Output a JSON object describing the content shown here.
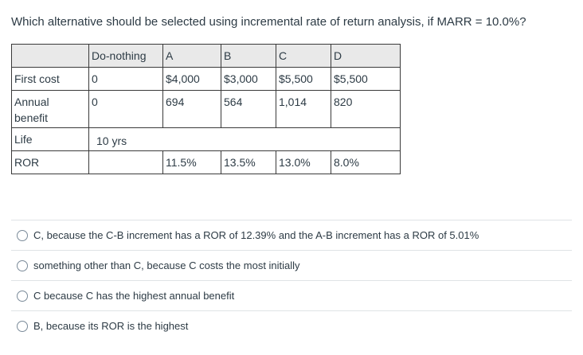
{
  "question": "Which alternative should be selected using incremental rate of return analysis, if MARR = 10.0%?",
  "table": {
    "header": [
      "",
      "Do-nothing",
      "A",
      "B",
      "C",
      "D"
    ],
    "first_cost": [
      "First cost",
      "0",
      "$4,000",
      "$3,000",
      "$5,500",
      "$5,500"
    ],
    "annual_benefit_label_1": "Annual",
    "annual_benefit_label_2": "benefit",
    "annual_benefit": [
      "0",
      "694",
      "564",
      "1,014",
      "820"
    ],
    "life_label": "Life",
    "life_value": "10 yrs",
    "ror": [
      "ROR",
      "",
      "11.5%",
      "13.5%",
      "13.0%",
      "8.0%"
    ]
  },
  "options": [
    "C, because the C-B increment has a ROR of 12.39% and the A-B increment has a ROR of 5.01%",
    "something other than C, because C costs the most initially",
    "C because C has the highest annual benefit",
    "B, because its ROR is the highest"
  ]
}
